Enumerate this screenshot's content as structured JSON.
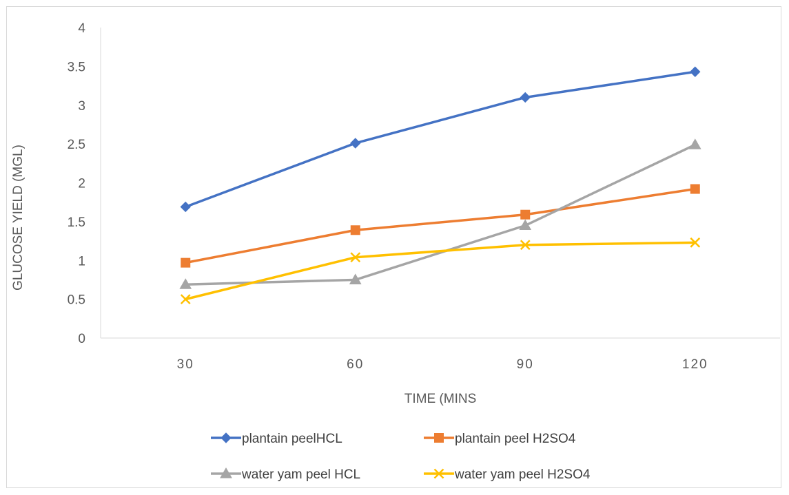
{
  "chart_data": {
    "type": "line",
    "title": "",
    "xlabel": "TIME (MINS",
    "ylabel": "GLUCOSE YIELD (MGL)",
    "categories": [
      "30",
      "60",
      "90",
      "120"
    ],
    "ylim": [
      0,
      4
    ],
    "yticks": [
      "0",
      "0.5",
      "1",
      "1.5",
      "2",
      "2.5",
      "3",
      "3.5",
      "4"
    ],
    "grid": false,
    "legend_position": "bottom",
    "series": [
      {
        "name": "plantain peelHCL",
        "values": [
          1.69,
          2.51,
          3.1,
          3.43
        ],
        "color": "#4472c4",
        "marker": "diamond"
      },
      {
        "name": "plantain peel H2SO4",
        "values": [
          0.97,
          1.39,
          1.59,
          1.92
        ],
        "color": "#ed7d31",
        "marker": "square"
      },
      {
        "name": "water yam peel HCL",
        "values": [
          0.69,
          0.75,
          1.45,
          2.49
        ],
        "color": "#a5a5a5",
        "marker": "triangle"
      },
      {
        "name": "water yam peel H2SO4",
        "values": [
          0.5,
          1.04,
          1.2,
          1.23
        ],
        "color": "#ffc000",
        "marker": "x"
      }
    ]
  }
}
